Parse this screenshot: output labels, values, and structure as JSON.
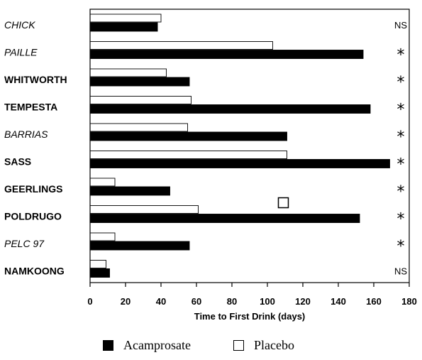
{
  "chart_data": {
    "type": "bar",
    "orientation": "horizontal",
    "xlabel": "Time to First Drink (days)",
    "xlim": [
      0,
      180
    ],
    "xticks": [
      0,
      20,
      40,
      60,
      80,
      100,
      120,
      140,
      160,
      180
    ],
    "categories": [
      "CHICK",
      "PAILLE",
      "WHITWORTH",
      "TEMPESTA",
      "BARRIAS",
      "SASS",
      "GEERLINGS",
      "POLDRUGO",
      "PELC 97",
      "NAMKOONG"
    ],
    "category_styles": [
      "italic",
      "italic",
      "bold",
      "bold",
      "italic",
      "bold",
      "bold",
      "bold",
      "italic",
      "bold"
    ],
    "significance": [
      "NS",
      "*",
      "*",
      "*",
      "*",
      "*",
      "*",
      "*",
      "*",
      "NS"
    ],
    "series": [
      {
        "name": "Placebo",
        "color": "#ffffff",
        "values": [
          40,
          103,
          43,
          57,
          55,
          111,
          14,
          61,
          14,
          9
        ]
      },
      {
        "name": "Acamprosate",
        "color": "#000000",
        "values": [
          38,
          154,
          56,
          158,
          111,
          169,
          45,
          152,
          56,
          11
        ]
      }
    ],
    "legend": [
      {
        "label": "Acamprosate",
        "swatch": "#000000"
      },
      {
        "label": "Placebo",
        "swatch": "#ffffff"
      }
    ],
    "annotations": [
      {
        "type": "open-square",
        "x": 109,
        "category": "POLDRUGO"
      }
    ],
    "grid": false,
    "legend_placement": "bottom"
  }
}
